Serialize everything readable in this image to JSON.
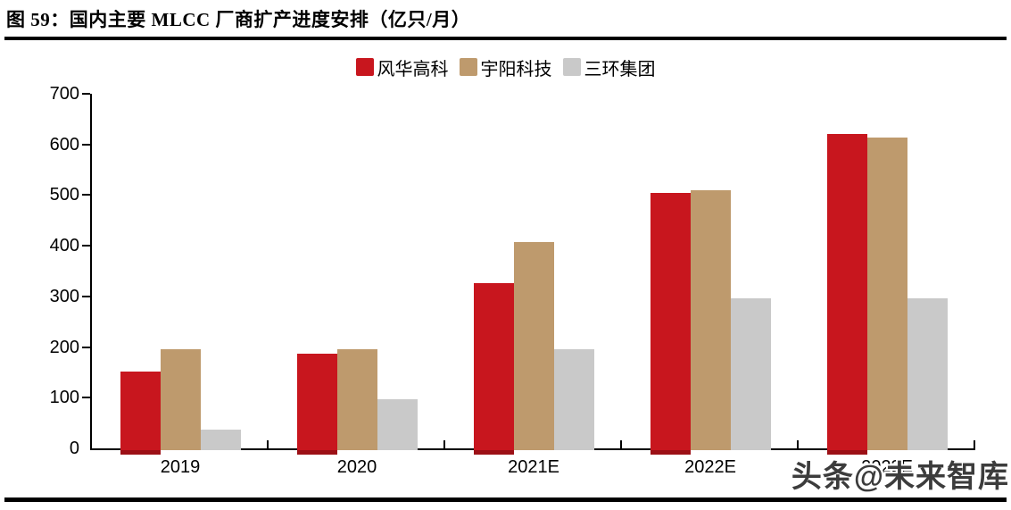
{
  "page": {
    "title": "图 59：国内主要 MLCC 厂商扩产进度安排（亿只/月）",
    "watermark": "头条@未来智库"
  },
  "chart_data": {
    "type": "bar",
    "title": "国内主要 MLCC 厂商扩产进度安排（亿只/月）",
    "categories": [
      "2019",
      "2020",
      "2021E",
      "2022E",
      "2023E"
    ],
    "series": [
      {
        "name": "风华高科",
        "color": "#c8161e",
        "values": [
          155,
          190,
          330,
          508,
          625
        ]
      },
      {
        "name": "宇阳科技",
        "color": "#be9a6d",
        "values": [
          200,
          200,
          410,
          513,
          617
        ]
      },
      {
        "name": "三环集团",
        "color": "#c9c9c9",
        "values": [
          40,
          100,
          200,
          300,
          300
        ]
      }
    ],
    "xlabel": "",
    "ylabel": "",
    "ylim": [
      0,
      700
    ],
    "yticks": [
      0,
      100,
      200,
      300,
      400,
      500,
      600,
      700
    ],
    "legend_position": "top",
    "grid": false,
    "axis_color": "#000000",
    "bar_underflow_color": "#9c1016"
  }
}
